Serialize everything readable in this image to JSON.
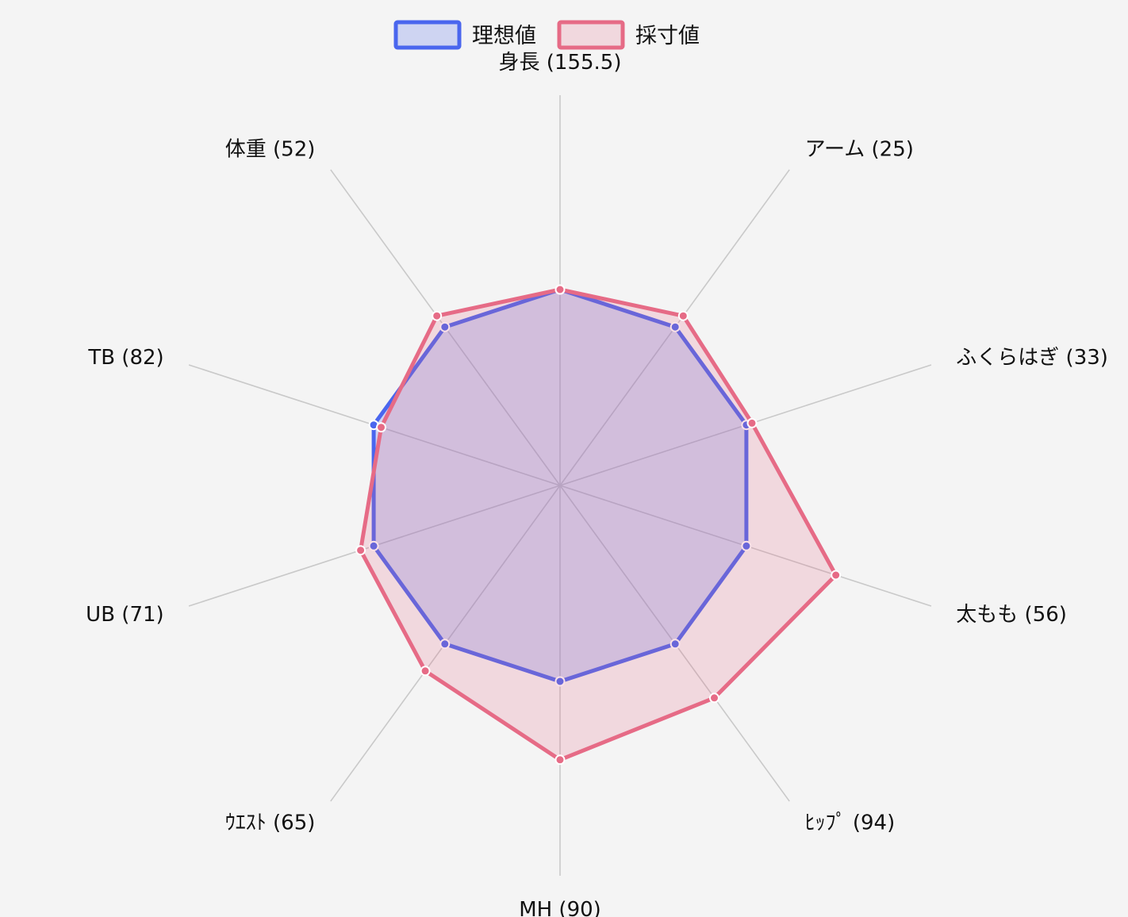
{
  "chart_data": {
    "type": "radar",
    "title": "",
    "axes": [
      "身長 (155.5)",
      "アーム (25)",
      "ふくらはぎ (33)",
      "太もも (56)",
      "ﾋｯﾌﾟ (94)",
      "MH (90)",
      "ｳｴｽﾄ (65)",
      "UB (71)",
      "TB (82)",
      "体重 (52)"
    ],
    "range": [
      0,
      1.5
    ],
    "grid": "spokes only",
    "legend_position": "top-center",
    "series": [
      {
        "name": "理想値",
        "color": "#4a66ee",
        "fill": "rgba(74,102,238,0.22)",
        "values": [
          1,
          1,
          1,
          1,
          1,
          1,
          1,
          1,
          1,
          1
        ]
      },
      {
        "name": "採寸値",
        "color": "#e66b86",
        "fill": "rgba(230,107,134,0.20)",
        "values": [
          1,
          1.07,
          1.03,
          1.48,
          1.34,
          1.4,
          1.17,
          1.07,
          0.96,
          1.07
        ]
      }
    ]
  }
}
